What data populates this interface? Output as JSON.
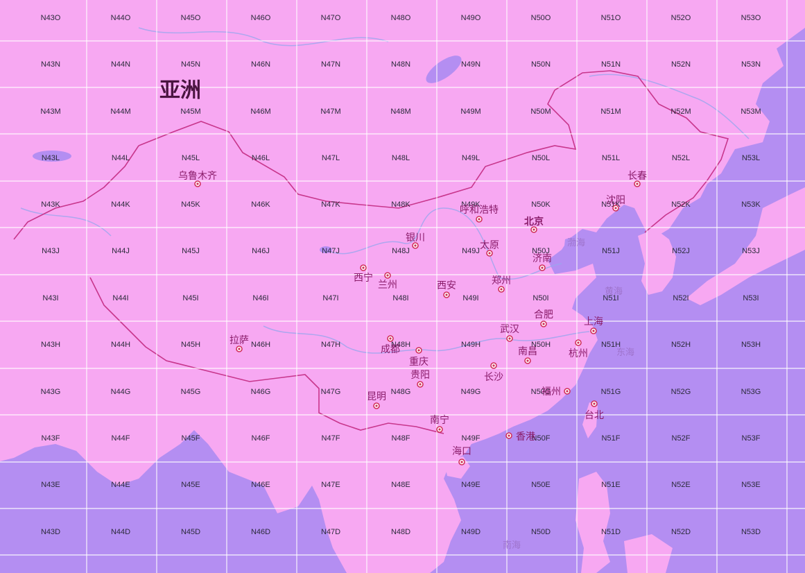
{
  "map": {
    "continent_label": "亚洲",
    "colors": {
      "land": "#f7a8f2",
      "sea": "#b48ef2",
      "grid": "#ffffff",
      "border": "#c8368c",
      "city": "#8a1c6a",
      "river": "#9aa6ee"
    },
    "grid": {
      "columns": [
        "N43",
        "N44",
        "N45",
        "N46",
        "N47",
        "N48",
        "N49",
        "N50",
        "N51",
        "N52",
        "N53"
      ],
      "rows": [
        "O",
        "N",
        "M",
        "L",
        "K",
        "J",
        "I",
        "H",
        "G",
        "F",
        "E",
        "D"
      ]
    },
    "cities": [
      {
        "id": "urumqi",
        "name": "乌鲁木齐"
      },
      {
        "id": "changchun",
        "name": "长春"
      },
      {
        "id": "shenyang",
        "name": "沈阳"
      },
      {
        "id": "hohhot",
        "name": "呼和浩特"
      },
      {
        "id": "beijing",
        "name": "北京"
      },
      {
        "id": "yinchuan",
        "name": "银川"
      },
      {
        "id": "taiyuan",
        "name": "太原"
      },
      {
        "id": "jinan",
        "name": "济南"
      },
      {
        "id": "xining",
        "name": "西宁"
      },
      {
        "id": "lanzhou",
        "name": "兰州"
      },
      {
        "id": "xian",
        "name": "西安"
      },
      {
        "id": "zhengzhou",
        "name": "郑州"
      },
      {
        "id": "hefei",
        "name": "合肥"
      },
      {
        "id": "shanghai",
        "name": "上海"
      },
      {
        "id": "wuhan",
        "name": "武汉"
      },
      {
        "id": "lhasa",
        "name": "拉萨"
      },
      {
        "id": "chengdu",
        "name": "成都"
      },
      {
        "id": "chongqing",
        "name": "重庆"
      },
      {
        "id": "nanchang",
        "name": "南昌"
      },
      {
        "id": "hangzhou",
        "name": "杭州"
      },
      {
        "id": "guiyang",
        "name": "贵阳"
      },
      {
        "id": "changsha",
        "name": "长沙"
      },
      {
        "id": "fuzhou",
        "name": "福州"
      },
      {
        "id": "kunming",
        "name": "昆明"
      },
      {
        "id": "taipei",
        "name": "台北"
      },
      {
        "id": "nanning",
        "name": "南宁"
      },
      {
        "id": "hongkong",
        "name": "香港"
      },
      {
        "id": "haikou",
        "name": "海口"
      }
    ],
    "seas": [
      {
        "id": "bohai",
        "name": "渤海"
      },
      {
        "id": "huanghai",
        "name": "黄海"
      },
      {
        "id": "donghai",
        "name": "东海"
      },
      {
        "id": "nanhai",
        "name": "南海"
      }
    ]
  }
}
